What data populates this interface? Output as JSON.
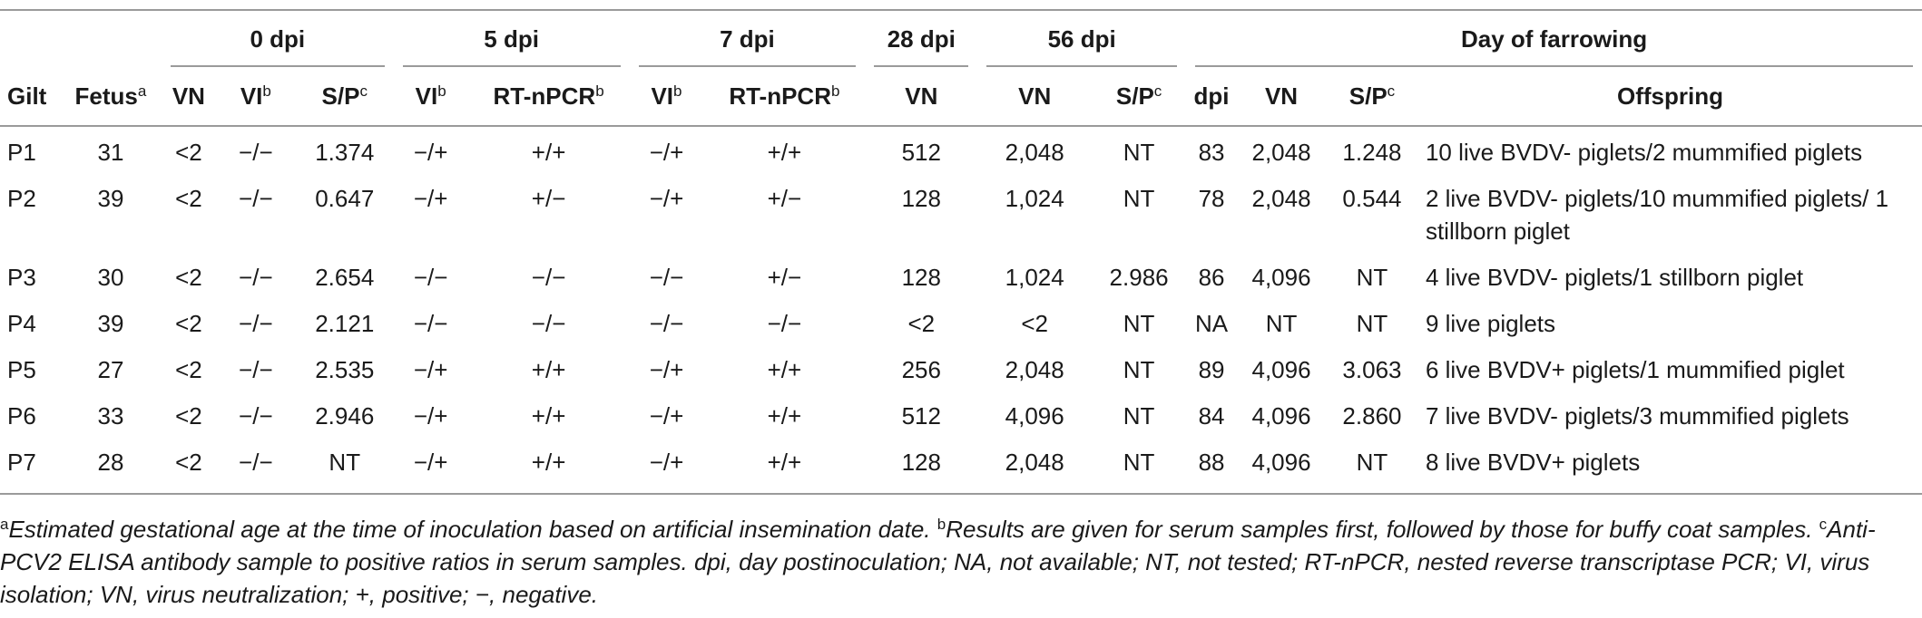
{
  "table": {
    "group_headers": {
      "dpi0": "0 dpi",
      "dpi5": "5 dpi",
      "dpi7": "7 dpi",
      "dpi28": "28 dpi",
      "dpi56": "56 dpi",
      "farrowing": "Day of farrowing"
    },
    "column_headers": {
      "gilt": "Gilt",
      "fetus": "Fetus",
      "fetus_sup": "a",
      "vn0": "VN",
      "vi0": "VI",
      "vi0_sup": "b",
      "sp0": "S/P",
      "sp0_sup": "c",
      "vi5": "VI",
      "vi5_sup": "b",
      "rt5": "RT-nPCR",
      "rt5_sup": "b",
      "vi7": "VI",
      "vi7_sup": "b",
      "rt7": "RT-nPCR",
      "rt7_sup": "b",
      "vn28": "VN",
      "vn56": "VN",
      "sp56": "S/P",
      "sp56_sup": "c",
      "dpi": "dpi",
      "vnf": "VN",
      "spf": "S/P",
      "spf_sup": "c",
      "offspring": "Offspring"
    },
    "rows": [
      [
        "P1",
        "31",
        "<2",
        "−/−",
        "1.374",
        "−/+",
        "+/+",
        "−/+",
        "+/+",
        "512",
        "2,048",
        "NT",
        "83",
        "2,048",
        "1.248",
        "10 live BVDV- piglets/2 mummified piglets"
      ],
      [
        "P2",
        "39",
        "<2",
        "−/−",
        "0.647",
        "−/+",
        "+/−",
        "−/+",
        "+/−",
        "128",
        "1,024",
        "NT",
        "78",
        "2,048",
        "0.544",
        "2 live BVDV- piglets/10 mummified piglets/ 1 stillborn piglet"
      ],
      [
        "P3",
        "30",
        "<2",
        "−/−",
        "2.654",
        "−/−",
        "−/−",
        "−/−",
        "+/−",
        "128",
        "1,024",
        "2.986",
        "86",
        "4,096",
        "NT",
        "4 live BVDV- piglets/1 stillborn piglet"
      ],
      [
        "P4",
        "39",
        "<2",
        "−/−",
        "2.121",
        "−/−",
        "−/−",
        "−/−",
        "−/−",
        "<2",
        "<2",
        "NT",
        "NA",
        "NT",
        "NT",
        "9 live piglets"
      ],
      [
        "P5",
        "27",
        "<2",
        "−/−",
        "2.535",
        "−/+",
        "+/+",
        "−/+",
        "+/+",
        "256",
        "2,048",
        "NT",
        "89",
        "4,096",
        "3.063",
        "6 live BVDV+ piglets/1 mummified piglet"
      ],
      [
        "P6",
        "33",
        "<2",
        "−/−",
        "2.946",
        "−/+",
        "+/+",
        "−/+",
        "+/+",
        "512",
        "4,096",
        "NT",
        "84",
        "4,096",
        "2.860",
        "7 live BVDV- piglets/3 mummified piglets"
      ],
      [
        "P7",
        "28",
        "<2",
        "−/−",
        "NT",
        "−/+",
        "+/+",
        "−/+",
        "+/+",
        "128",
        "2,048",
        "NT",
        "88",
        "4,096",
        "NT",
        "8 live BVDV+ piglets"
      ]
    ]
  },
  "footnotes": {
    "a_mark": "a",
    "a_text": "Estimated gestational age at the time of inoculation based on artificial insemination date.",
    "b_mark": "b",
    "b_text": "Results are given for serum samples first, followed by those for buffy coat samples.",
    "c_mark": "c",
    "c_text": "Anti-PCV2 ELISA antibody sample to positive ratios in serum samples. dpi, day postinoculation; NA, not available; NT, not tested; RT-nPCR, nested reverse transcriptase PCR; VI, virus isolation; VN, virus neutralization; +, positive; −, negative."
  }
}
